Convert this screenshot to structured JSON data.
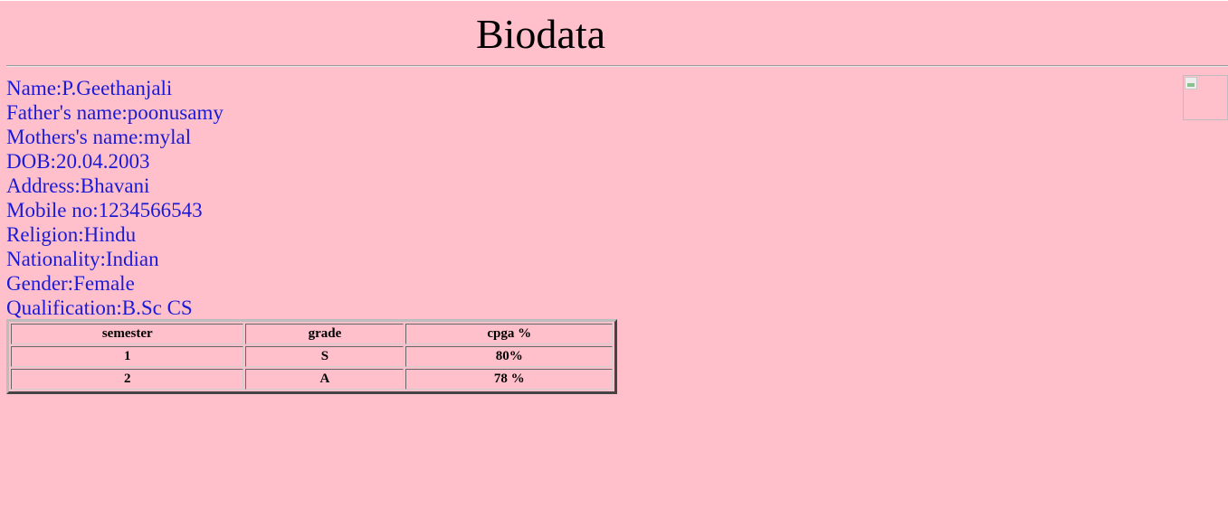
{
  "header": {
    "title": "Biodata"
  },
  "profile": {
    "name": "Name:P.Geethanjali",
    "father": "Father's name:poonusamy",
    "mother": "Mothers's name:mylal",
    "dob": "DOB:20.04.2003",
    "address": "Address:Bhavani",
    "mobile": "Mobile no:1234566543",
    "religion": "Religion:Hindu",
    "nationality": "Nationality:Indian",
    "gender": "Gender:Female",
    "qualification": "Qualification:B.Sc CS"
  },
  "photo": {
    "icon": "broken-image-icon"
  },
  "table": {
    "headers": [
      "semester",
      "grade",
      "cpga %"
    ],
    "rows": [
      [
        "1",
        "S",
        "80%"
      ],
      [
        "2",
        "A",
        "78 %"
      ]
    ]
  },
  "colors": {
    "background": "#ffc0cb",
    "text_blue": "#1a1ad6",
    "title": "#000000"
  }
}
